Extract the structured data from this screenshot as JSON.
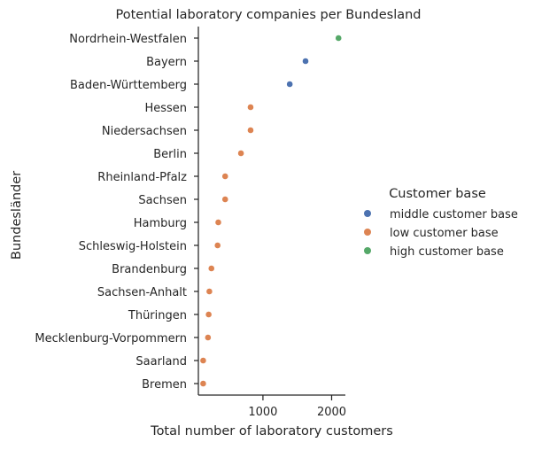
{
  "chart_data": {
    "type": "scatter",
    "title": "Potential laboratory companies per Bundesland",
    "xlabel": "Total number of laboratory customers",
    "ylabel": "Bundesländer",
    "xlim": [
      60,
      2200
    ],
    "xticks": [
      1000,
      2000
    ],
    "grid": false,
    "legend": {
      "title": "Customer base",
      "placement": "right",
      "entries": [
        {
          "name": "middle customer base",
          "color": "#4c72b0"
        },
        {
          "name": "low customer base",
          "color": "#dd8452"
        },
        {
          "name": "high customer base",
          "color": "#55a868"
        }
      ]
    },
    "categories": [
      "Nordrhein-Westfalen",
      "Bayern",
      "Baden-Württemberg",
      "Hessen",
      "Niedersachsen",
      "Berlin",
      "Rheinland-Pfalz",
      "Sachsen",
      "Hamburg",
      "Schleswig-Holstein",
      "Brandenburg",
      "Sachsen-Anhalt",
      "Thüringen",
      "Mecklenburg-Vorpommern",
      "Saarland",
      "Bremen"
    ],
    "points": [
      {
        "label": "Nordrhein-Westfalen",
        "x": 2100,
        "group": "high customer base"
      },
      {
        "label": "Bayern",
        "x": 1620,
        "group": "middle customer base"
      },
      {
        "label": "Baden-Württemberg",
        "x": 1390,
        "group": "middle customer base"
      },
      {
        "label": "Hessen",
        "x": 820,
        "group": "low customer base"
      },
      {
        "label": "Niedersachsen",
        "x": 820,
        "group": "low customer base"
      },
      {
        "label": "Berlin",
        "x": 680,
        "group": "low customer base"
      },
      {
        "label": "Rheinland-Pfalz",
        "x": 450,
        "group": "low customer base"
      },
      {
        "label": "Sachsen",
        "x": 450,
        "group": "low customer base"
      },
      {
        "label": "Hamburg",
        "x": 350,
        "group": "low customer base"
      },
      {
        "label": "Schleswig-Holstein",
        "x": 340,
        "group": "low customer base"
      },
      {
        "label": "Brandenburg",
        "x": 250,
        "group": "low customer base"
      },
      {
        "label": "Sachsen-Anhalt",
        "x": 220,
        "group": "low customer base"
      },
      {
        "label": "Thüringen",
        "x": 210,
        "group": "low customer base"
      },
      {
        "label": "Mecklenburg-Vorpommern",
        "x": 200,
        "group": "low customer base"
      },
      {
        "label": "Saarland",
        "x": 130,
        "group": "low customer base"
      },
      {
        "label": "Bremen",
        "x": 130,
        "group": "low customer base"
      }
    ]
  }
}
